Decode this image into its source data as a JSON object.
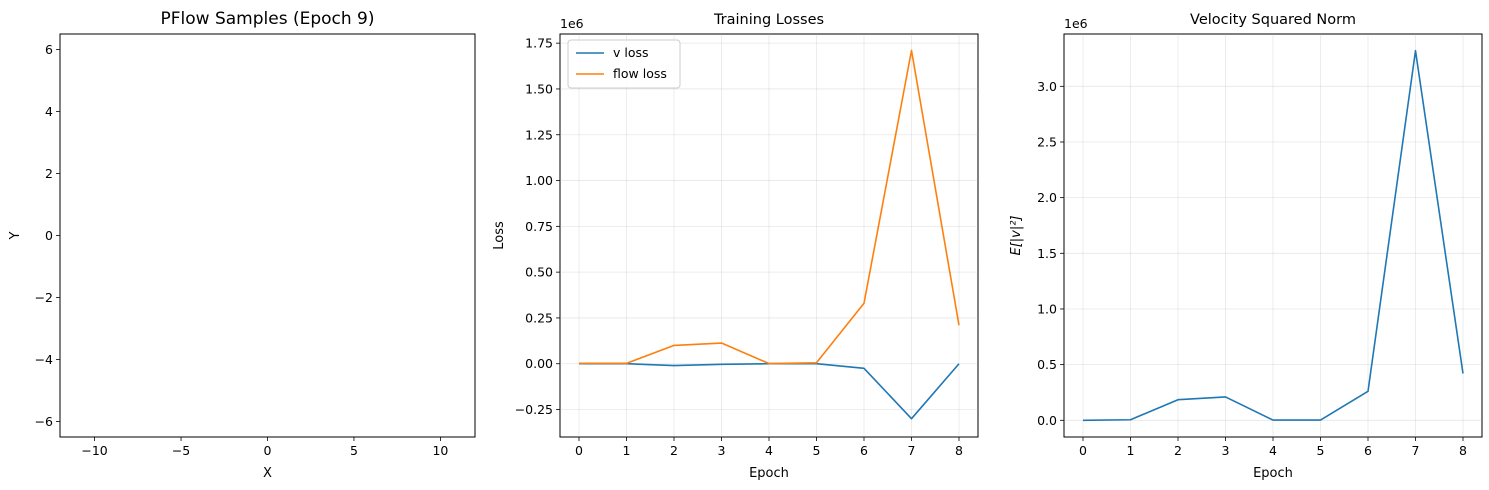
{
  "chart_data": [
    {
      "type": "scatter",
      "title": "PFlow Samples (Epoch 9)",
      "xlabel": "X",
      "ylabel": "Y",
      "xlim": [
        -12,
        12
      ],
      "ylim": [
        -6.5,
        6.5
      ],
      "xticks": [
        -10,
        -5,
        0,
        5,
        10
      ],
      "yticks": [
        -6,
        -4,
        -2,
        0,
        2,
        4,
        6
      ],
      "xtick_labels": [
        "−10",
        "−5",
        "0",
        "5",
        "10"
      ],
      "ytick_labels": [
        "−6",
        "−4",
        "−2",
        "0",
        "2",
        "4",
        "6"
      ],
      "grid": false,
      "series": []
    },
    {
      "type": "line",
      "title": "Training Losses",
      "xlabel": "Epoch",
      "ylabel": "Loss",
      "offset_text": "1e6",
      "xlim": [
        -0.4,
        8.4
      ],
      "ylim": [
        -0.4,
        1.8
      ],
      "xticks": [
        0,
        1,
        2,
        3,
        4,
        5,
        6,
        7,
        8
      ],
      "yticks": [
        -0.25,
        0,
        0.25,
        0.5,
        0.75,
        1.0,
        1.25,
        1.5,
        1.75
      ],
      "xtick_labels": [
        "0",
        "1",
        "2",
        "3",
        "4",
        "5",
        "6",
        "7",
        "8"
      ],
      "ytick_labels": [
        "−0.25",
        "0.00",
        "0.25",
        "0.50",
        "0.75",
        "1.00",
        "1.25",
        "1.50",
        "1.75"
      ],
      "grid": true,
      "legend_position": "top-left",
      "series": [
        {
          "name": "v loss",
          "color": "#1f77b4",
          "x": [
            0,
            1,
            2,
            3,
            4,
            5,
            6,
            7,
            8
          ],
          "values": [
            0.0,
            0.0,
            -0.01,
            -0.003,
            0.0,
            0.0,
            -0.025,
            -0.3,
            0.0
          ]
        },
        {
          "name": "flow loss",
          "color": "#ff7f0e",
          "x": [
            0,
            1,
            2,
            3,
            4,
            5,
            6,
            7,
            8
          ],
          "values": [
            0.002,
            0.002,
            0.1,
            0.113,
            0.001,
            0.005,
            0.33,
            1.71,
            0.21
          ]
        }
      ]
    },
    {
      "type": "line",
      "title": "Velocity Squared Norm",
      "xlabel": "Epoch",
      "ylabel": "E[|v|²]",
      "offset_text": "1e6",
      "xlim": [
        -0.4,
        8.4
      ],
      "ylim": [
        -0.15,
        3.47
      ],
      "xticks": [
        0,
        1,
        2,
        3,
        4,
        5,
        6,
        7,
        8
      ],
      "yticks": [
        0,
        0.5,
        1.0,
        1.5,
        2.0,
        2.5,
        3.0
      ],
      "xtick_labels": [
        "0",
        "1",
        "2",
        "3",
        "4",
        "5",
        "6",
        "7",
        "8"
      ],
      "ytick_labels": [
        "0.0",
        "0.5",
        "1.0",
        "1.5",
        "2.0",
        "2.5",
        "3.0"
      ],
      "grid": true,
      "series": [
        {
          "color": "#1f77b4",
          "x": [
            0,
            1,
            2,
            3,
            4,
            5,
            6,
            7,
            8
          ],
          "values": [
            0.0,
            0.005,
            0.185,
            0.21,
            0.002,
            0.002,
            0.26,
            3.32,
            0.42
          ]
        }
      ]
    }
  ]
}
